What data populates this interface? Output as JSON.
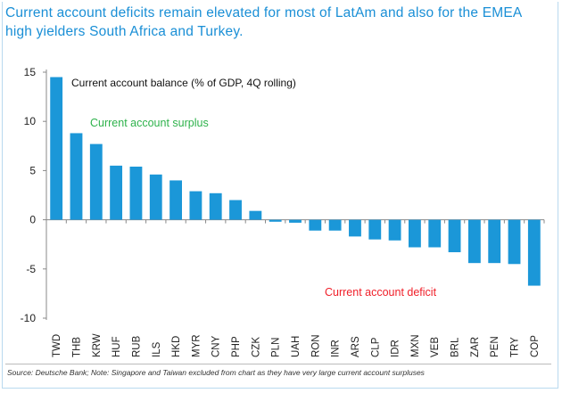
{
  "title": "Current account deficits remain elevated for most of LatAm and also for the EMEA high yielders South Africa and Turkey.",
  "source": "Source: Deutsche Bank; Note: Singapore and Taiwan excluded from chart as they have very large current account surpluses",
  "colors": {
    "bar": "#1b97d8",
    "title": "#1a8fd6",
    "surplus": "#2eb24b",
    "deficit": "#f0202a"
  },
  "chart_data": {
    "type": "bar",
    "title": "Current account balance (% of GDP, 4Q rolling)",
    "categories": [
      "TWD",
      "THB",
      "KRW",
      "HUF",
      "RUB",
      "ILS",
      "HKD",
      "MYR",
      "CNY",
      "PHP",
      "CZK",
      "PLN",
      "UAH",
      "RON",
      "INR",
      "ARS",
      "CLP",
      "IDR",
      "MXN",
      "VEB",
      "BRL",
      "ZAR",
      "PEN",
      "TRY",
      "COP"
    ],
    "values": [
      14.5,
      8.8,
      7.7,
      5.5,
      5.4,
      4.6,
      4.0,
      2.9,
      2.7,
      2.0,
      0.9,
      -0.2,
      -0.3,
      -1.1,
      -1.1,
      -1.7,
      -2.0,
      -2.1,
      -2.8,
      -2.8,
      -3.3,
      -4.4,
      -4.4,
      -4.5,
      -6.7
    ],
    "ylim": [
      -10,
      15
    ],
    "yticks": [
      -10,
      -5,
      0,
      5,
      10,
      15
    ],
    "annotations": [
      "Current account surplus",
      "Current account deficit"
    ],
    "xlabel": "",
    "ylabel": ""
  }
}
